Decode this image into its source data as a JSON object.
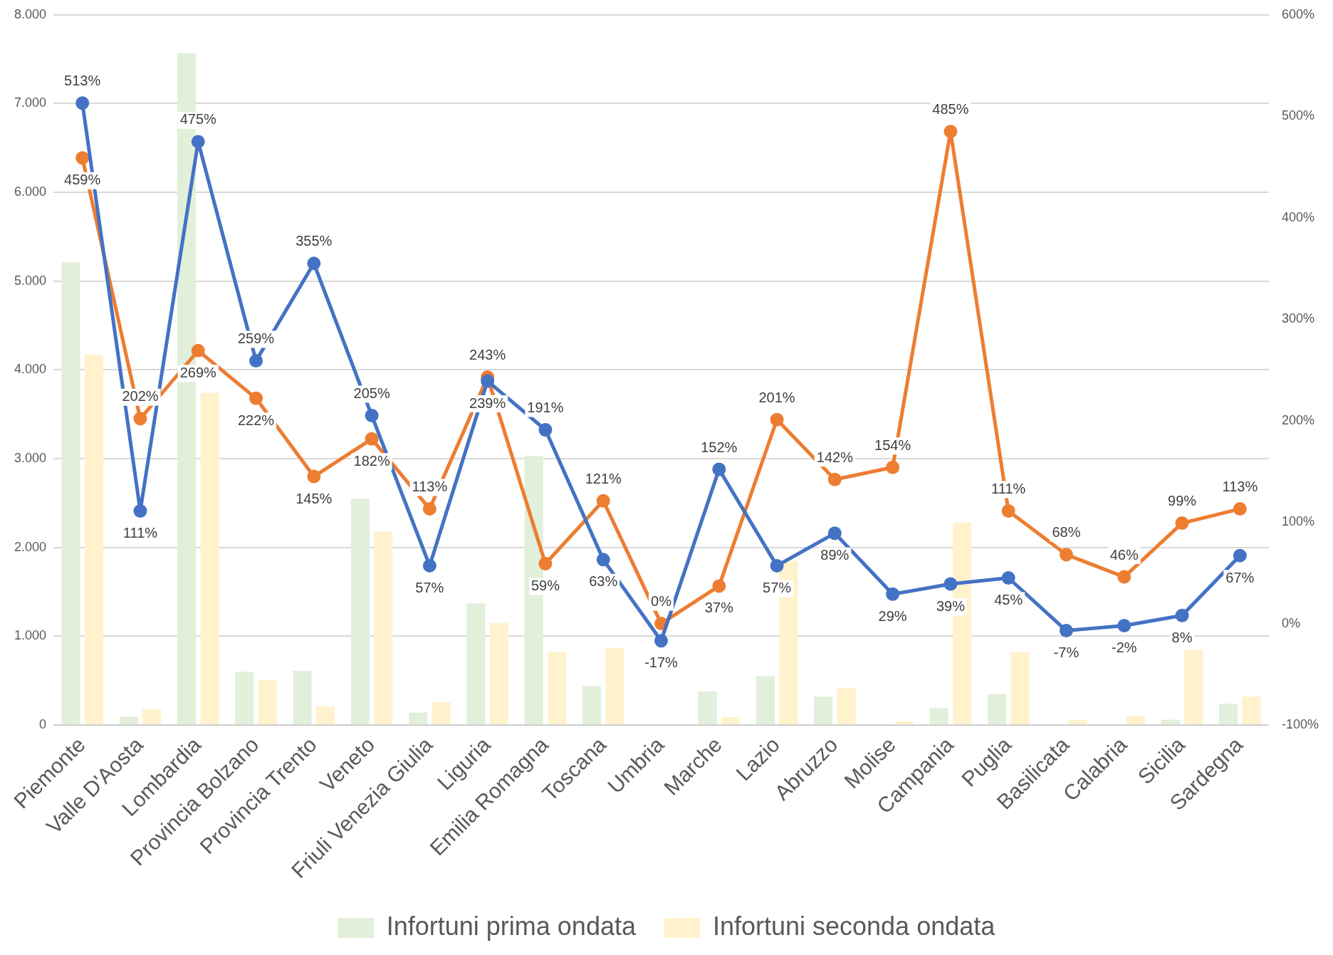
{
  "chart_data": {
    "type": "bar",
    "categories": [
      "Piemonte",
      "Valle D'Aosta",
      "Lombardia",
      "Provincia Bolzano",
      "Provincia Trento",
      "Veneto",
      "Friuli Venezia Giulia",
      "Liguria",
      "Emilia Romagna",
      "Toscana",
      "Umbria",
      "Marche",
      "Lazio",
      "Abruzzo",
      "Molise",
      "Campania",
      "Puglia",
      "Basilicata",
      "Calabria",
      "Sicilia",
      "Sardegna"
    ],
    "series": [
      {
        "name": "Infortuni prima ondata",
        "color": "#e2efda",
        "values": [
          5210,
          90,
          7570,
          600,
          610,
          2550,
          140,
          1370,
          3030,
          440,
          0,
          380,
          550,
          320,
          0,
          190,
          350,
          0,
          0,
          60,
          240
        ]
      },
      {
        "name": "Infortuni seconda ondata",
        "color": "#fff2cc",
        "values": [
          4170,
          180,
          3740,
          510,
          210,
          2180,
          260,
          1150,
          820,
          870,
          0,
          90,
          1850,
          420,
          40,
          2280,
          820,
          60,
          100,
          850,
          320
        ]
      },
      {
        "type": "line",
        "axis": "y2",
        "color": "#4472c4",
        "values": [
          513,
          111,
          475,
          259,
          355,
          205,
          57,
          239,
          191,
          63,
          -17,
          152,
          57,
          89,
          29,
          39,
          45,
          -7,
          -2,
          8,
          67
        ],
        "value_labels": [
          "513%",
          "111%",
          "475%",
          "259%",
          "355%",
          "205%",
          "57%",
          "239%",
          "191%",
          "63%",
          "-17%",
          "152%",
          "57%",
          "89%",
          "29%",
          "39%",
          "45%",
          "-7%",
          "-2%",
          "8%",
          "67%"
        ]
      },
      {
        "type": "line",
        "axis": "y2",
        "color": "#ed7d31",
        "values": [
          459,
          202,
          269,
          222,
          145,
          182,
          113,
          243,
          59,
          121,
          0,
          37,
          201,
          142,
          154,
          485,
          111,
          68,
          46,
          99,
          113
        ],
        "value_labels": [
          "459%",
          "202%",
          "269%",
          "222%",
          "145%",
          "182%",
          "113%",
          "243%",
          "59%",
          "121%",
          "0%",
          "37%",
          "201%",
          "142%",
          "154%",
          "485%",
          "111%",
          "68%",
          "46%",
          "99%",
          "113%"
        ]
      }
    ],
    "ylim": [
      0,
      8000
    ],
    "yticks": [
      {
        "value": 0,
        "label": "0"
      },
      {
        "value": 1000,
        "label": "1.000"
      },
      {
        "value": 2000,
        "label": "2.000"
      },
      {
        "value": 3000,
        "label": "3.000"
      },
      {
        "value": 4000,
        "label": "4.000"
      },
      {
        "value": 5000,
        "label": "5.000"
      },
      {
        "value": 6000,
        "label": "6.000"
      },
      {
        "value": 7000,
        "label": "7.000"
      },
      {
        "value": 8000,
        "label": "8.000"
      }
    ],
    "y2lim": [
      -100,
      600
    ],
    "y2ticks": [
      {
        "value": -100,
        "label": "-100%"
      },
      {
        "value": 0,
        "label": "0%"
      },
      {
        "value": 100,
        "label": "100%"
      },
      {
        "value": 200,
        "label": "200%"
      },
      {
        "value": 300,
        "label": "300%"
      },
      {
        "value": 400,
        "label": "400%"
      },
      {
        "value": 500,
        "label": "500%"
      },
      {
        "value": 600,
        "label": "600%"
      }
    ],
    "grid": "y",
    "legend": "bottom",
    "marker": "circle",
    "line_style": "solid"
  }
}
